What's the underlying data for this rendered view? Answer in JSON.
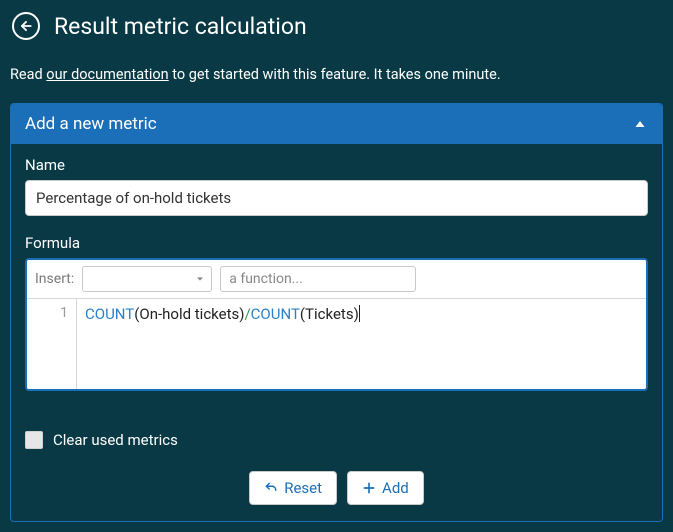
{
  "header": {
    "title": "Result metric calculation"
  },
  "intro": {
    "prefix": "Read ",
    "link_text": "our documentation",
    "suffix": " to get started with this feature. It takes one minute."
  },
  "panel": {
    "title": "Add a new metric",
    "collapsed": false
  },
  "form": {
    "name_label": "Name",
    "name_value": "Percentage of on-hold tickets",
    "formula_label": "Formula",
    "insert_label": "Insert:",
    "function_placeholder": "a function...",
    "editor": {
      "line_number": "1",
      "tokens": [
        {
          "t": "COUNT",
          "c": "fn"
        },
        {
          "t": "(On-hold tickets)",
          "c": ""
        },
        {
          "t": "/",
          "c": "op"
        },
        {
          "t": "COUNT",
          "c": "fn"
        },
        {
          "t": "(Tickets)",
          "c": ""
        }
      ]
    },
    "clear_label": "Clear used metrics",
    "clear_checked": false,
    "reset_label": "Reset",
    "add_label": "Add"
  },
  "colors": {
    "page_bg": "#083944",
    "accent": "#1b6fb8",
    "fn": "#2a80c8",
    "op": "#2fa04a"
  }
}
